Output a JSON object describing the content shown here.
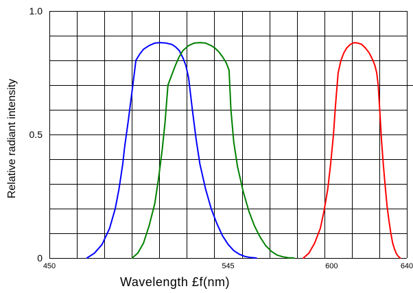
{
  "chart_data": {
    "type": "line",
    "title": "",
    "xlabel": "Wavelength £f(nm)",
    "ylabel": "Relative radiant intensity",
    "xlim": [
      450,
      640
    ],
    "ylim": [
      0,
      1.0
    ],
    "x_ticks": [
      {
        "value": 450,
        "label": "450"
      },
      {
        "value": 545,
        "label": "545"
      },
      {
        "value": 600,
        "label": "600"
      },
      {
        "value": 640,
        "label": "640"
      }
    ],
    "y_ticks": [
      {
        "value": 0,
        "label": "0"
      },
      {
        "value": 0.5,
        "label": "0.5"
      },
      {
        "value": 1.0,
        "label": "1.0"
      }
    ],
    "grid": true,
    "series": [
      {
        "color": "#0000ff",
        "x": [
          470,
          474,
          478,
          482,
          485,
          487,
          489,
          490,
          492,
          494,
          496,
          498,
          500,
          503,
          506,
          509,
          512,
          515,
          517,
          519,
          521,
          522.5,
          524,
          526,
          528,
          530,
          533,
          536,
          539,
          542,
          545,
          548,
          551,
          554,
          557,
          560
        ],
        "y": [
          0.0,
          0.02,
          0.055,
          0.12,
          0.2,
          0.28,
          0.38,
          0.45,
          0.56,
          0.68,
          0.8,
          0.825,
          0.845,
          0.86,
          0.87,
          0.872,
          0.87,
          0.865,
          0.855,
          0.84,
          0.81,
          0.78,
          0.73,
          0.6,
          0.48,
          0.38,
          0.28,
          0.2,
          0.14,
          0.09,
          0.055,
          0.03,
          0.015,
          0.006,
          0.002,
          0.0
        ]
      },
      {
        "color": "#008000",
        "x": [
          494,
          497,
          500,
          503,
          506,
          508,
          510,
          511.5,
          513,
          515,
          517,
          519,
          521,
          524,
          527,
          530,
          533,
          536,
          538,
          540,
          542,
          544,
          545.5,
          546.5,
          548,
          550,
          553,
          556,
          559,
          562,
          565,
          568,
          571,
          574,
          577,
          580
        ],
        "y": [
          0.0,
          0.02,
          0.06,
          0.13,
          0.22,
          0.32,
          0.44,
          0.55,
          0.7,
          0.74,
          0.78,
          0.815,
          0.84,
          0.86,
          0.87,
          0.872,
          0.87,
          0.86,
          0.85,
          0.835,
          0.815,
          0.79,
          0.76,
          0.6,
          0.47,
          0.37,
          0.27,
          0.19,
          0.13,
          0.085,
          0.05,
          0.027,
          0.012,
          0.005,
          0.001,
          0.0
        ]
      },
      {
        "color": "#ff0000",
        "x": [
          585,
          588,
          591,
          594,
          596,
          598,
          599.5,
          601,
          602,
          603.5,
          605,
          606.5,
          608,
          610,
          612,
          614,
          616,
          618,
          620,
          622,
          623,
          624,
          624.8,
          625.6,
          626.5,
          627.5,
          628.5,
          629.5,
          630.5,
          631.5,
          632.5,
          633.5,
          634.5,
          635.5,
          636.5
        ],
        "y": [
          0.0,
          0.02,
          0.06,
          0.12,
          0.19,
          0.28,
          0.38,
          0.5,
          0.61,
          0.75,
          0.8,
          0.83,
          0.85,
          0.865,
          0.872,
          0.87,
          0.865,
          0.85,
          0.83,
          0.8,
          0.78,
          0.75,
          0.7,
          0.6,
          0.48,
          0.38,
          0.29,
          0.21,
          0.15,
          0.1,
          0.06,
          0.035,
          0.017,
          0.006,
          0.0
        ]
      }
    ]
  }
}
